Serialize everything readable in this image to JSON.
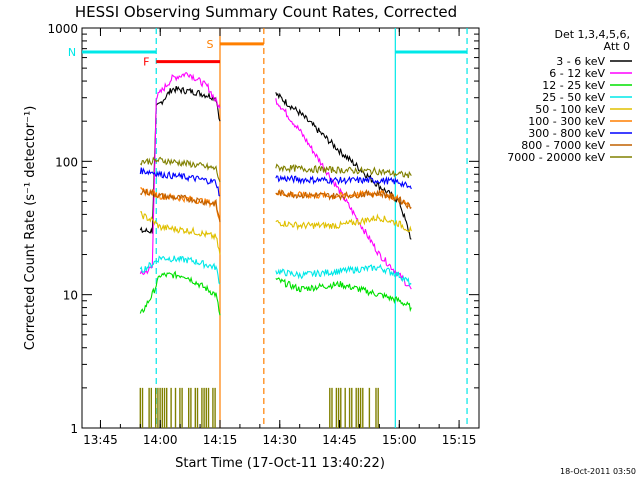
{
  "chart_data": {
    "type": "line",
    "title": "HESSI Observing Summary Count Rates, Corrected",
    "xlabel": "Start Time (17-Oct-11 13:40:22)",
    "ylabel": "Corrected Count Rate (s⁻¹ detector⁻¹)",
    "y_scale": "log",
    "xlim": [
      "13:40:22",
      "15:20:00"
    ],
    "ylim": [
      1,
      1000
    ],
    "x_ticks": [
      "13:45",
      "14:00",
      "14:15",
      "14:30",
      "14:45",
      "15:00",
      "15:15"
    ],
    "y_ticks": [
      "1",
      "10",
      "100",
      "1000"
    ],
    "legend_title": [
      "Det 1,3,4,5,6,",
      "Att 0"
    ],
    "legend_placement": "right",
    "footer_stamp": "18-Oct-2011 03:50",
    "series": [
      {
        "name": "3 - 6 keV",
        "color": "#000000",
        "segments": [
          [
            [
              "13:55",
              30
            ],
            [
              "13:58",
              30
            ],
            [
              "13:59",
              250
            ],
            [
              "14:03",
              350
            ],
            [
              "14:09",
              330
            ],
            [
              "14:14",
              300
            ],
            [
              "14:15",
              200
            ]
          ],
          [
            [
              "14:29",
              320
            ],
            [
              "14:35",
              230
            ],
            [
              "14:45",
              120
            ],
            [
              "14:55",
              65
            ],
            [
              "15:00",
              50
            ],
            [
              "15:03",
              26
            ]
          ]
        ]
      },
      {
        "name": "6 - 12 keV",
        "color": "#ff00ff",
        "segments": [
          [
            [
              "13:55",
              14
            ],
            [
              "13:58",
              16
            ],
            [
              "13:59",
              300
            ],
            [
              "14:03",
              420
            ],
            [
              "14:07",
              460
            ],
            [
              "14:12",
              360
            ],
            [
              "14:15",
              250
            ]
          ],
          [
            [
              "14:29",
              290
            ],
            [
              "14:35",
              170
            ],
            [
              "14:45",
              60
            ],
            [
              "14:55",
              20
            ],
            [
              "15:00",
              14
            ],
            [
              "15:03",
              11
            ]
          ]
        ]
      },
      {
        "name": "12 - 25 keV",
        "color": "#00e000",
        "segments": [
          [
            [
              "13:55",
              7
            ],
            [
              "13:58",
              10
            ],
            [
              "14:00",
              14
            ],
            [
              "14:06",
              14
            ],
            [
              "14:14",
              10
            ],
            [
              "14:15",
              7
            ]
          ],
          [
            [
              "14:29",
              13
            ],
            [
              "14:35",
              11
            ],
            [
              "14:45",
              12
            ],
            [
              "14:55",
              10
            ],
            [
              "15:00",
              9
            ],
            [
              "15:03",
              8
            ]
          ]
        ]
      },
      {
        "name": "25 - 50 keV",
        "color": "#00e8e8",
        "segments": [
          [
            [
              "13:55",
              15
            ],
            [
              "13:58",
              17
            ],
            [
              "14:00",
              19
            ],
            [
              "14:08",
              18
            ],
            [
              "14:14",
              16
            ],
            [
              "14:15",
              12
            ]
          ],
          [
            [
              "14:29",
              15
            ],
            [
              "14:35",
              14
            ],
            [
              "14:45",
              15
            ],
            [
              "14:55",
              16
            ],
            [
              "15:00",
              14
            ],
            [
              "15:03",
              12
            ]
          ]
        ]
      },
      {
        "name": "50 - 100 keV",
        "color": "#e0c000",
        "segments": [
          [
            [
              "13:55",
              40
            ],
            [
              "13:58",
              36
            ],
            [
              "14:00",
              32
            ],
            [
              "14:08",
              30
            ],
            [
              "14:14",
              27
            ],
            [
              "14:15",
              20
            ]
          ],
          [
            [
              "14:29",
              35
            ],
            [
              "14:35",
              33
            ],
            [
              "14:45",
              33
            ],
            [
              "14:55",
              38
            ],
            [
              "15:00",
              34
            ],
            [
              "15:03",
              30
            ]
          ]
        ]
      },
      {
        "name": "100 - 300 keV",
        "color": "#ff7f00",
        "segments": [
          [
            [
              "13:55",
              60
            ],
            [
              "13:58",
              58
            ],
            [
              "14:00",
              55
            ],
            [
              "14:08",
              52
            ],
            [
              "14:14",
              48
            ],
            [
              "14:15",
              35
            ]
          ],
          [
            [
              "14:29",
              58
            ],
            [
              "14:35",
              56
            ],
            [
              "14:45",
              55
            ],
            [
              "14:55",
              58
            ],
            [
              "15:00",
              52
            ],
            [
              "15:03",
              45
            ]
          ]
        ]
      },
      {
        "name": "300 - 800 keV",
        "color": "#0000ff",
        "segments": [
          [
            [
              "13:55",
              85
            ],
            [
              "13:58",
              83
            ],
            [
              "14:00",
              80
            ],
            [
              "14:08",
              75
            ],
            [
              "14:14",
              70
            ],
            [
              "14:15",
              55
            ]
          ],
          [
            [
              "14:29",
              75
            ],
            [
              "14:35",
              73
            ],
            [
              "14:45",
              72
            ],
            [
              "14:55",
              72
            ],
            [
              "15:00",
              70
            ],
            [
              "15:03",
              62
            ]
          ]
        ]
      },
      {
        "name": "800 - 7000 keV",
        "color": "#c06000",
        "segments": [
          [
            [
              "13:55",
              60
            ],
            [
              "13:58",
              58
            ],
            [
              "14:00",
              55
            ],
            [
              "14:08",
              52
            ],
            [
              "14:14",
              48
            ],
            [
              "14:15",
              35
            ]
          ],
          [
            [
              "14:29",
              58
            ],
            [
              "14:35",
              56
            ],
            [
              "14:45",
              55
            ],
            [
              "14:55",
              58
            ],
            [
              "15:00",
              52
            ],
            [
              "15:03",
              45
            ]
          ]
        ]
      },
      {
        "name": "7000 - 20000 keV",
        "color": "#808000",
        "segments": [
          [
            [
              "13:55",
              100
            ],
            [
              "13:58",
              100
            ],
            [
              "14:00",
              102
            ],
            [
              "14:08",
              95
            ],
            [
              "14:14",
              88
            ],
            [
              "14:15",
              70
            ]
          ],
          [
            [
              "14:29",
              90
            ],
            [
              "14:35",
              88
            ],
            [
              "14:45",
              86
            ],
            [
              "14:55",
              84
            ],
            [
              "15:00",
              80
            ],
            [
              "15:03",
              78
            ]
          ]
        ]
      }
    ],
    "noise_level_series": {
      "name": "7000 - 20000 keV",
      "color": "#808000",
      "segments": [
        [
          "13:55",
          "14:14"
        ],
        [
          "14:42",
          "14:55"
        ]
      ],
      "range": [
        1,
        2
      ]
    },
    "flags": [
      {
        "label": "F",
        "color": "#ff0000",
        "level": 560,
        "start": "13:59",
        "end": "14:15"
      },
      {
        "label": "N",
        "color": "#00e8e8",
        "level": 660,
        "start": "13:40:22",
        "end": "13:59"
      },
      {
        "label": "S",
        "color": "#ff7f00",
        "level": 760,
        "start": "14:15",
        "end": "14:26"
      },
      {
        "label": "",
        "color": "#00e8e8",
        "level": 660,
        "start": "14:59",
        "end": "15:17"
      }
    ],
    "vertical_markers": [
      {
        "time": "13:59",
        "color": "#00e8e8",
        "style": "dashed"
      },
      {
        "time": "14:15",
        "color": "#ff7f00",
        "style": "solid"
      },
      {
        "time": "14:26",
        "color": "#ff7f00",
        "style": "dashed"
      },
      {
        "time": "14:59",
        "color": "#00e8e8",
        "style": "solid"
      },
      {
        "time": "15:17",
        "color": "#00e8e8",
        "style": "dashed"
      }
    ]
  }
}
